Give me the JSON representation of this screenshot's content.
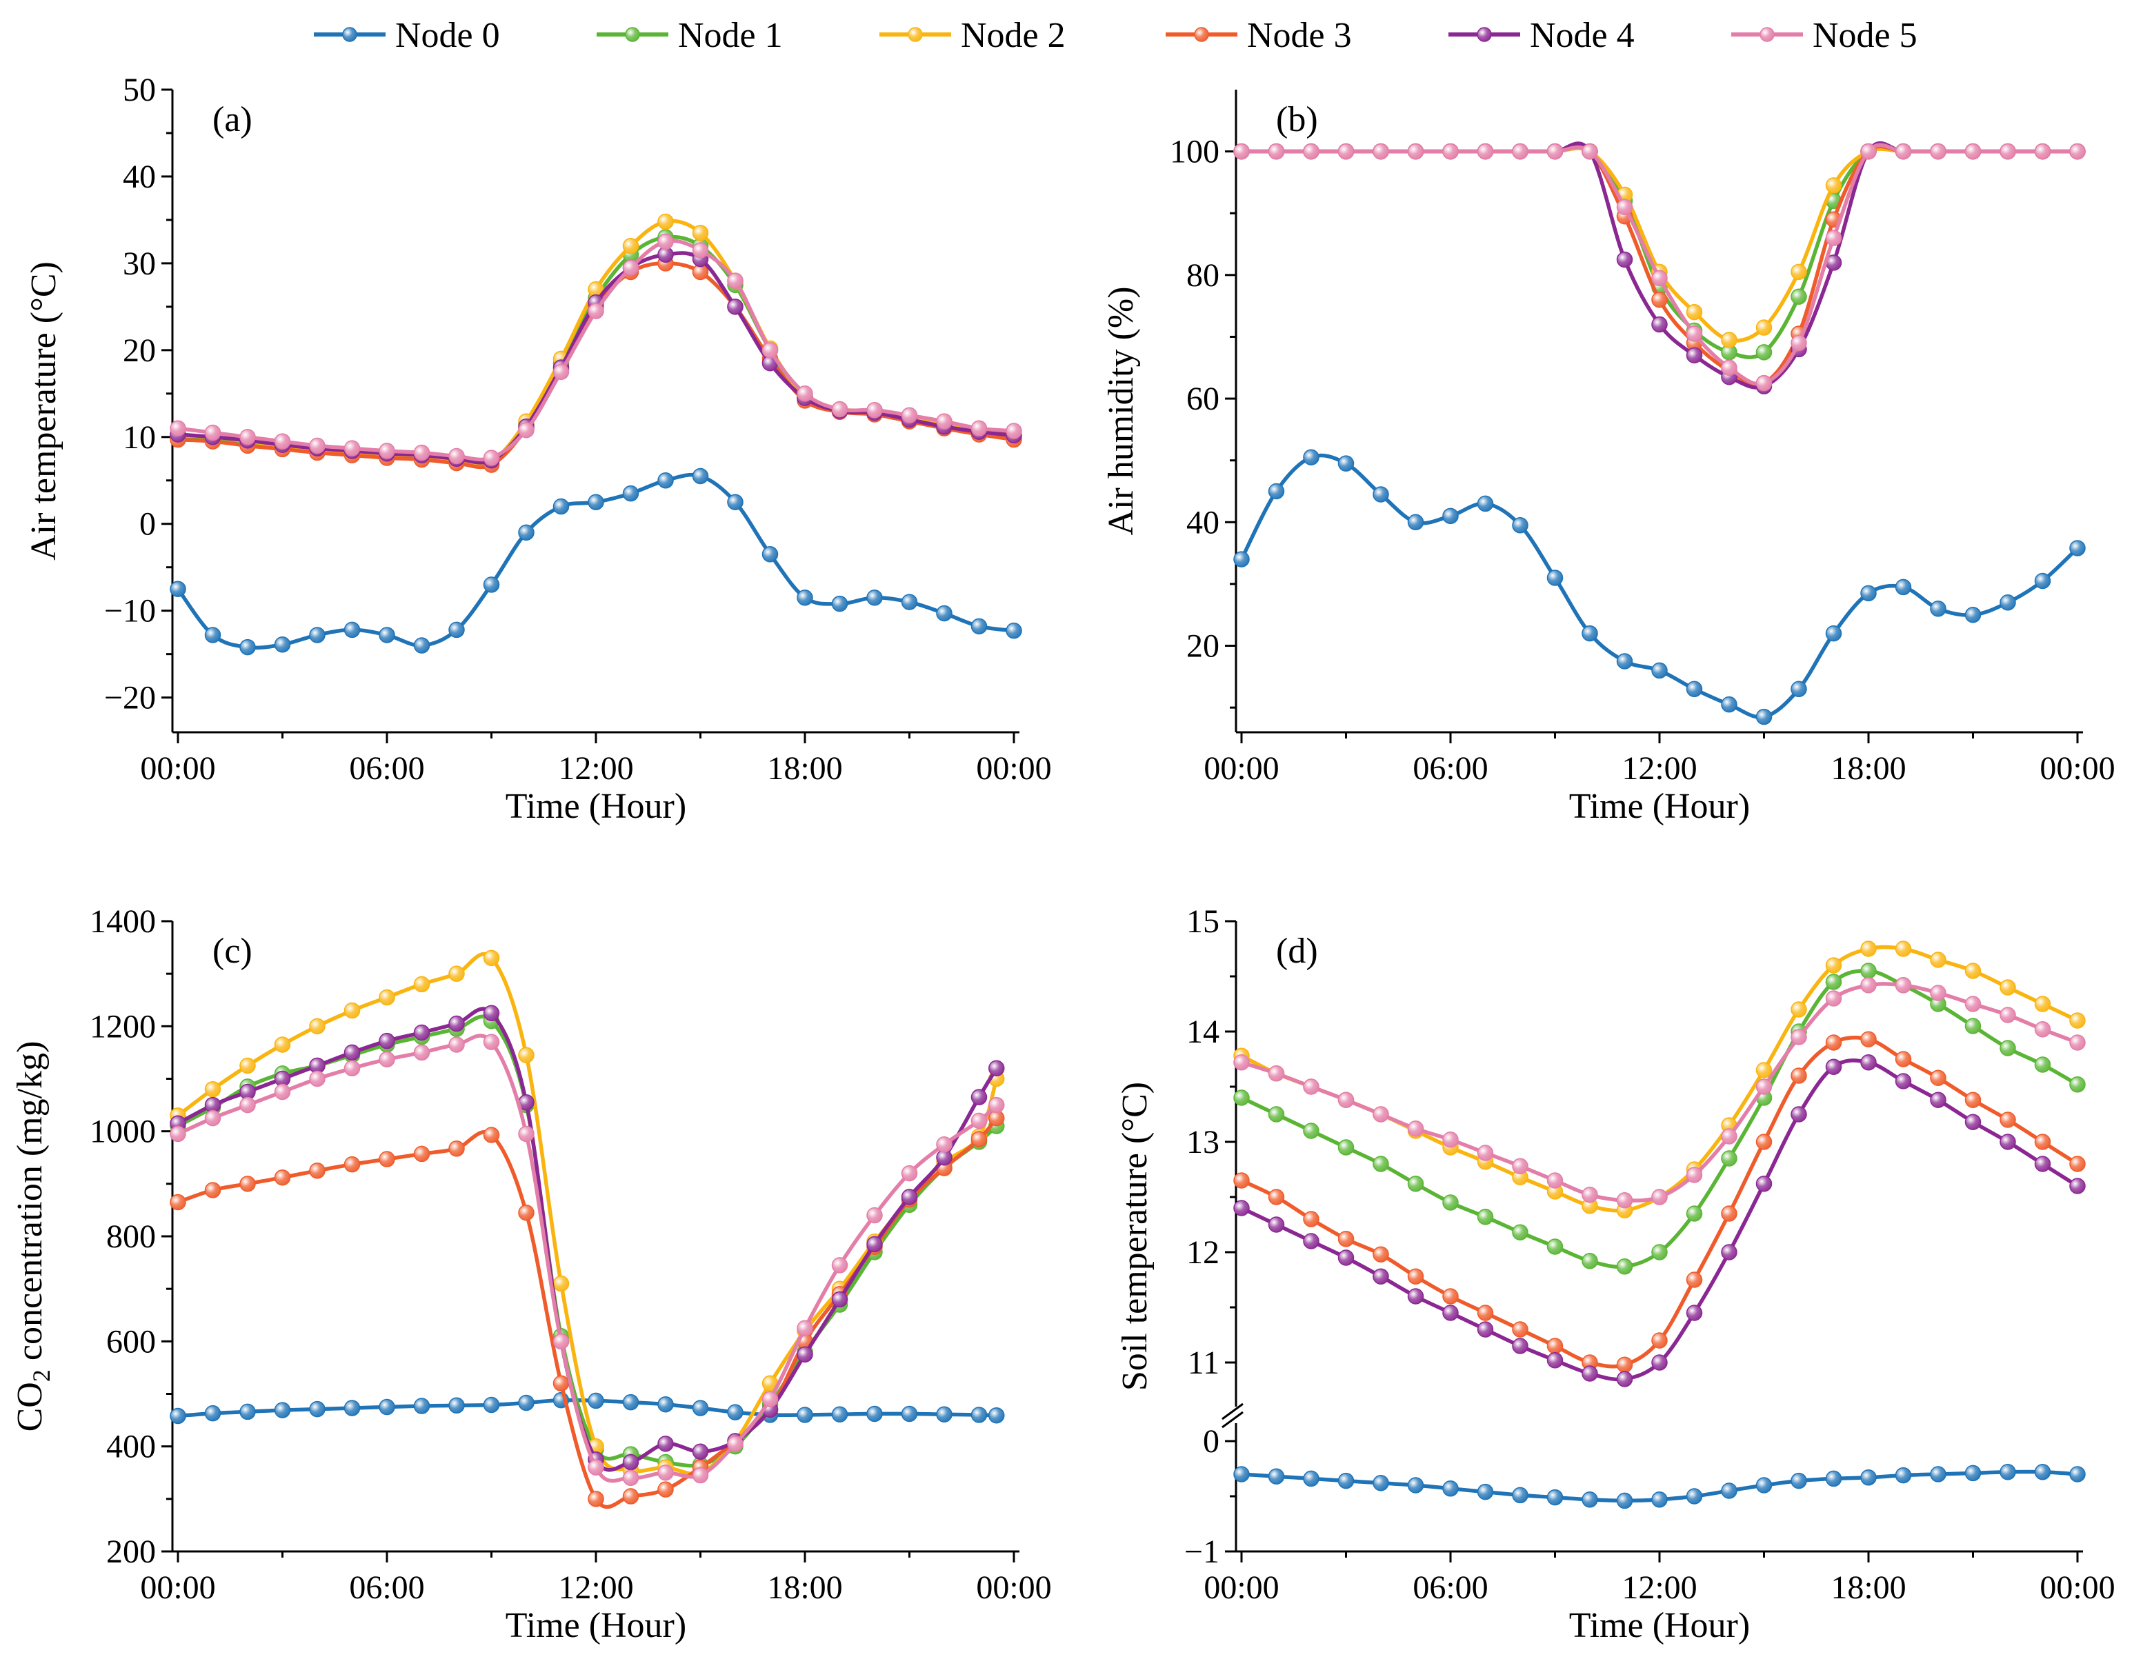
{
  "legend": {
    "entries": [
      "Node 0",
      "Node 1",
      "Node 2",
      "Node 3",
      "Node 4",
      "Node 5"
    ],
    "colors": [
      "#1f73b7",
      "#5ab535",
      "#f9b40f",
      "#ef5b2a",
      "#8a2792",
      "#e37ea8"
    ]
  },
  "chart_data": [
    {
      "id": "a",
      "type": "line",
      "label": "(a)",
      "xlabel": "Time (Hour)",
      "ylabel": "Air temperature (°C)",
      "xlim": [
        0,
        24
      ],
      "ylim": [
        -24,
        50
      ],
      "xticks": [
        0,
        6,
        12,
        18,
        24
      ],
      "xtick_labels": [
        "00:00",
        "06:00",
        "12:00",
        "18:00",
        "00:00"
      ],
      "yticks": [
        -20,
        -10,
        0,
        10,
        20,
        30,
        40,
        50
      ],
      "ytick_labels": [
        "−20",
        "−10",
        "0",
        "10",
        "20",
        "30",
        "40",
        "50"
      ],
      "x": [
        0,
        1,
        2,
        3,
        4,
        5,
        6,
        7,
        8,
        9,
        10,
        11,
        12,
        13,
        14,
        15,
        16,
        17,
        18,
        19,
        20,
        21,
        22,
        23,
        24
      ],
      "series": [
        {
          "name": "Node 0",
          "values": [
            -7.5,
            -12.8,
            -14.2,
            -13.9,
            -12.8,
            -12.2,
            -12.8,
            -14.0,
            -12.2,
            -7.0,
            -1.0,
            2.0,
            2.5,
            3.5,
            5.0,
            5.5,
            2.5,
            -3.5,
            -8.5,
            -9.2,
            -8.5,
            -9.0,
            -10.3,
            -11.8,
            -12.3
          ]
        },
        {
          "name": "Node 1",
          "values": [
            10.0,
            9.8,
            9.3,
            8.8,
            8.4,
            8.1,
            7.8,
            7.6,
            7.2,
            7.0,
            11.5,
            18.5,
            26.0,
            31.0,
            33.0,
            32.0,
            27.5,
            20.0,
            14.5,
            13.0,
            12.8,
            12.0,
            11.3,
            10.6,
            10.0
          ]
        },
        {
          "name": "Node 2",
          "values": [
            10.2,
            10.0,
            9.5,
            9.0,
            8.6,
            8.3,
            8.0,
            7.8,
            7.4,
            7.2,
            11.8,
            19.0,
            27.0,
            32.0,
            34.8,
            33.5,
            28.0,
            20.2,
            14.7,
            13.2,
            13.0,
            12.2,
            11.5,
            10.8,
            10.2
          ]
        },
        {
          "name": "Node 3",
          "values": [
            9.7,
            9.5,
            9.0,
            8.6,
            8.2,
            7.9,
            7.6,
            7.4,
            7.0,
            6.8,
            11.0,
            17.8,
            25.0,
            29.0,
            30.0,
            29.0,
            25.0,
            19.0,
            14.2,
            12.9,
            12.6,
            11.8,
            11.0,
            10.3,
            9.7
          ]
        },
        {
          "name": "Node 4",
          "values": [
            10.3,
            10.0,
            9.6,
            9.1,
            8.7,
            8.4,
            8.1,
            7.9,
            7.5,
            7.3,
            11.2,
            18.0,
            25.5,
            29.5,
            31.0,
            30.5,
            25.0,
            18.5,
            14.5,
            13.0,
            12.8,
            12.0,
            11.2,
            10.6,
            10.2
          ]
        },
        {
          "name": "Node 5",
          "values": [
            11.0,
            10.5,
            10.0,
            9.5,
            9.0,
            8.7,
            8.4,
            8.2,
            7.8,
            7.6,
            10.8,
            17.5,
            24.5,
            29.5,
            32.5,
            31.5,
            28.0,
            20.0,
            15.0,
            13.2,
            13.1,
            12.5,
            11.8,
            11.0,
            10.7
          ]
        }
      ]
    },
    {
      "id": "b",
      "type": "line",
      "label": "(b)",
      "xlabel": "Time (Hour)",
      "ylabel": "Air humidity (%)",
      "xlim": [
        0,
        24
      ],
      "ylim": [
        6,
        110
      ],
      "xticks": [
        0,
        6,
        12,
        18,
        24
      ],
      "xtick_labels": [
        "00:00",
        "06:00",
        "12:00",
        "18:00",
        "00:00"
      ],
      "yticks": [
        20,
        40,
        60,
        80,
        100
      ],
      "ytick_labels": [
        "20",
        "40",
        "60",
        "80",
        "100"
      ],
      "x": [
        0,
        1,
        2,
        3,
        4,
        5,
        6,
        7,
        8,
        9,
        10,
        11,
        12,
        13,
        14,
        15,
        16,
        17,
        18,
        19,
        20,
        21,
        22,
        23,
        24
      ],
      "series": [
        {
          "name": "Node 0",
          "values": [
            34.0,
            45.0,
            50.5,
            49.5,
            44.5,
            40.0,
            41.0,
            43.0,
            39.5,
            31.0,
            22.0,
            17.5,
            16.0,
            13.0,
            10.5,
            8.5,
            13.0,
            22.0,
            28.5,
            29.5,
            26.0,
            25.0,
            27.0,
            30.5,
            35.8
          ]
        },
        {
          "name": "Node 1",
          "values": [
            100,
            100,
            100,
            100,
            100,
            100,
            100,
            100,
            100,
            100,
            100,
            92.0,
            78.0,
            71.0,
            67.5,
            67.5,
            76.5,
            92.0,
            100,
            100,
            100,
            100,
            100,
            100,
            100
          ]
        },
        {
          "name": "Node 2",
          "values": [
            100,
            100,
            100,
            100,
            100,
            100,
            100,
            100,
            100,
            100,
            100,
            93.0,
            80.5,
            74.0,
            69.5,
            71.5,
            80.5,
            94.5,
            100,
            100,
            100,
            100,
            100,
            100,
            100
          ]
        },
        {
          "name": "Node 3",
          "values": [
            100,
            100,
            100,
            100,
            100,
            100,
            100,
            100,
            100,
            100,
            100,
            89.5,
            76.0,
            69.0,
            64.5,
            62.5,
            70.5,
            89.0,
            100,
            100,
            100,
            100,
            100,
            100,
            100
          ]
        },
        {
          "name": "Node 4",
          "values": [
            100,
            100,
            100,
            100,
            100,
            100,
            100,
            100,
            100,
            100,
            100,
            82.5,
            72.0,
            67.0,
            63.5,
            62.0,
            68.0,
            82.0,
            100,
            100,
            100,
            100,
            100,
            100,
            100
          ]
        },
        {
          "name": "Node 5",
          "values": [
            100,
            100,
            100,
            100,
            100,
            100,
            100,
            100,
            100,
            100,
            100,
            91.0,
            79.5,
            70.5,
            65.0,
            62.5,
            69.0,
            86.0,
            100,
            100,
            100,
            100,
            100,
            100,
            100
          ]
        }
      ]
    },
    {
      "id": "c",
      "type": "line",
      "label": "(c)",
      "xlabel": "Time (Hour)",
      "ylabel_main": "CO",
      "ylabel_sub": "2",
      "ylabel_rest": " concentration (mg/kg)",
      "xlim": [
        0,
        24
      ],
      "ylim": [
        200,
        1400
      ],
      "xticks": [
        0,
        6,
        12,
        18,
        24
      ],
      "xtick_labels": [
        "00:00",
        "06:00",
        "12:00",
        "18:00",
        "00:00"
      ],
      "yticks": [
        200,
        400,
        600,
        800,
        1000,
        1200,
        1400
      ],
      "ytick_labels": [
        "200",
        "400",
        "600",
        "800",
        "1000",
        "1200",
        "1400"
      ],
      "x": [
        0,
        1,
        2,
        3,
        4,
        5,
        6,
        7,
        8,
        9,
        10,
        11,
        12,
        13,
        14,
        15,
        16,
        17,
        18,
        19,
        20,
        21,
        22,
        23,
        23.5
      ],
      "series": [
        {
          "name": "Node 0",
          "values": [
            458,
            463,
            466,
            469,
            471,
            473,
            475,
            477,
            478,
            479,
            483,
            488,
            487,
            484,
            480,
            473,
            465,
            460,
            460,
            461,
            462,
            462,
            461,
            460,
            459
          ]
        },
        {
          "name": "Node 1",
          "values": [
            1010,
            1045,
            1085,
            1110,
            1125,
            1145,
            1165,
            1180,
            1195,
            1210,
            1050,
            610,
            395,
            385,
            370,
            365,
            400,
            480,
            580,
            670,
            770,
            860,
            930,
            980,
            1010
          ]
        },
        {
          "name": "Node 2",
          "values": [
            1030,
            1080,
            1125,
            1165,
            1200,
            1230,
            1255,
            1280,
            1300,
            1330,
            1145,
            710,
            400,
            355,
            360,
            350,
            410,
            520,
            620,
            700,
            790,
            870,
            940,
            990,
            1100
          ]
        },
        {
          "name": "Node 3",
          "values": [
            865,
            888,
            900,
            912,
            925,
            937,
            947,
            957,
            967,
            993,
            845,
            520,
            300,
            305,
            318,
            360,
            410,
            470,
            600,
            690,
            780,
            870,
            930,
            985,
            1025
          ]
        },
        {
          "name": "Node 4",
          "values": [
            1015,
            1050,
            1075,
            1100,
            1125,
            1150,
            1172,
            1188,
            1205,
            1225,
            1055,
            600,
            375,
            370,
            405,
            390,
            410,
            470,
            575,
            680,
            785,
            875,
            950,
            1065,
            1120
          ]
        },
        {
          "name": "Node 5",
          "values": [
            995,
            1025,
            1050,
            1075,
            1100,
            1120,
            1137,
            1150,
            1165,
            1170,
            995,
            600,
            360,
            340,
            350,
            345,
            405,
            490,
            625,
            745,
            840,
            920,
            975,
            1020,
            1050
          ]
        }
      ]
    },
    {
      "id": "d",
      "type": "line",
      "label": "(d)",
      "xlabel": "Time (Hour)",
      "ylabel": "Soil temperature (°C)",
      "xlim": [
        0,
        24
      ],
      "ylim": [
        -1,
        15
      ],
      "axis_break": "between 0 and 10.5",
      "xticks": [
        0,
        6,
        12,
        18,
        24
      ],
      "xtick_labels": [
        "00:00",
        "06:00",
        "12:00",
        "18:00",
        "00:00"
      ],
      "yticks": [
        -1,
        0,
        11,
        12,
        13,
        14,
        15
      ],
      "ytick_labels": [
        "−1",
        "0",
        "11",
        "12",
        "13",
        "14",
        "15"
      ],
      "x": [
        0,
        1,
        2,
        3,
        4,
        5,
        6,
        7,
        8,
        9,
        10,
        11,
        12,
        13,
        14,
        15,
        16,
        17,
        18,
        19,
        20,
        21,
        22,
        23,
        24
      ],
      "series": [
        {
          "name": "Node 0",
          "values": [
            -0.3,
            -0.32,
            -0.34,
            -0.36,
            -0.38,
            -0.4,
            -0.43,
            -0.46,
            -0.49,
            -0.51,
            -0.53,
            -0.54,
            -0.53,
            -0.5,
            -0.45,
            -0.4,
            -0.36,
            -0.34,
            -0.33,
            -0.31,
            -0.3,
            -0.29,
            -0.28,
            -0.28,
            -0.3
          ]
        },
        {
          "name": "Node 1",
          "values": [
            13.4,
            13.25,
            13.1,
            12.95,
            12.8,
            12.62,
            12.45,
            12.32,
            12.18,
            12.05,
            11.92,
            11.87,
            12.0,
            12.35,
            12.85,
            13.4,
            14.0,
            14.45,
            14.55,
            14.42,
            14.25,
            14.05,
            13.85,
            13.7,
            13.52
          ]
        },
        {
          "name": "Node 2",
          "values": [
            13.78,
            13.62,
            13.5,
            13.38,
            13.25,
            13.1,
            12.95,
            12.82,
            12.68,
            12.55,
            12.42,
            12.38,
            12.5,
            12.75,
            13.15,
            13.65,
            14.2,
            14.6,
            14.75,
            14.75,
            14.65,
            14.55,
            14.4,
            14.25,
            14.1
          ]
        },
        {
          "name": "Node 3",
          "values": [
            12.65,
            12.5,
            12.3,
            12.12,
            11.98,
            11.78,
            11.6,
            11.45,
            11.3,
            11.15,
            11.0,
            10.98,
            11.2,
            11.75,
            12.35,
            13.0,
            13.6,
            13.9,
            13.93,
            13.75,
            13.58,
            13.38,
            13.2,
            13.0,
            12.8
          ]
        },
        {
          "name": "Node 4",
          "values": [
            12.4,
            12.25,
            12.1,
            11.95,
            11.78,
            11.6,
            11.45,
            11.3,
            11.15,
            11.02,
            10.9,
            10.85,
            11.0,
            11.45,
            12.0,
            12.62,
            13.25,
            13.68,
            13.72,
            13.55,
            13.38,
            13.18,
            13.0,
            12.8,
            12.6
          ]
        },
        {
          "name": "Node 5",
          "values": [
            13.72,
            13.62,
            13.5,
            13.38,
            13.25,
            13.12,
            13.02,
            12.9,
            12.78,
            12.65,
            12.52,
            12.47,
            12.5,
            12.7,
            13.05,
            13.5,
            13.95,
            14.3,
            14.42,
            14.42,
            14.35,
            14.25,
            14.15,
            14.02,
            13.9
          ]
        }
      ]
    }
  ]
}
